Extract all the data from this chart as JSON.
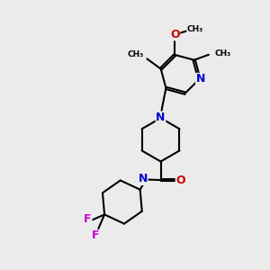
{
  "bg_color": "#ebebeb",
  "bond_color": "#000000",
  "N_color": "#0000cc",
  "O_color": "#cc0000",
  "F_color": "#cc00cc",
  "line_width": 1.5,
  "font_size": 8,
  "figsize": [
    3.0,
    3.0
  ],
  "dpi": 100,
  "xlim": [
    0,
    10
  ],
  "ylim": [
    0,
    10
  ]
}
